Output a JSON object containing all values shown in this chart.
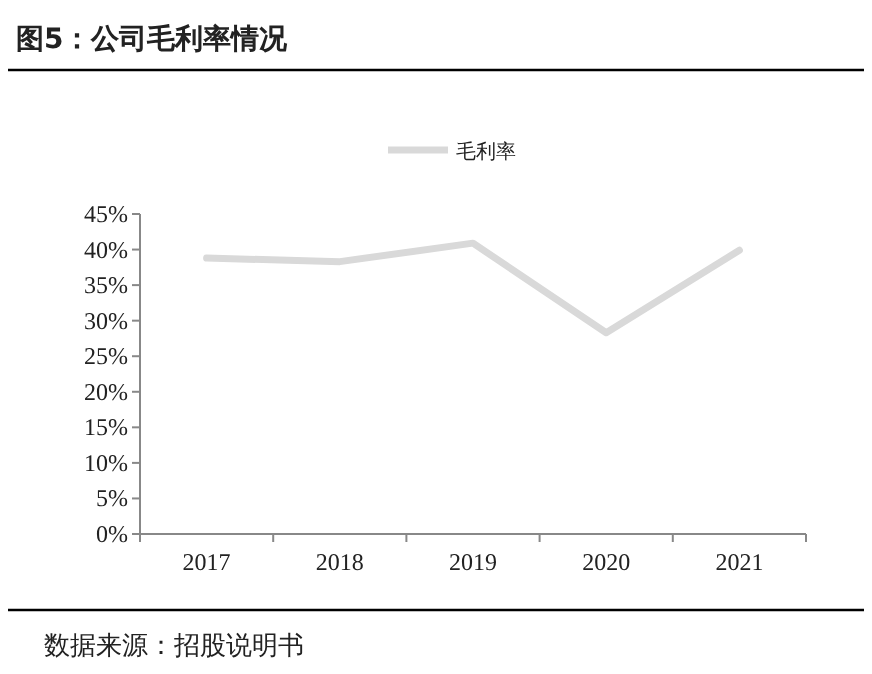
{
  "chart_data": {
    "type": "line",
    "title": "图5：公司毛利率情况",
    "annotations": [
      "数据来源：招股说明书"
    ],
    "categories": [
      "2017",
      "2018",
      "2019",
      "2020",
      "2021"
    ],
    "series": [
      {
        "name": "毛利率",
        "color": "#d9d9d9",
        "values": [
          38.8,
          38.3,
          40.9,
          28.3,
          39.9
        ]
      }
    ],
    "ylim": [
      0,
      45
    ],
    "yticks": [
      {
        "value": 0,
        "label": "0%"
      },
      {
        "value": 5,
        "label": "5%"
      },
      {
        "value": 10,
        "label": "10%"
      },
      {
        "value": 15,
        "label": "15%"
      },
      {
        "value": 20,
        "label": "20%"
      },
      {
        "value": 25,
        "label": "25%"
      },
      {
        "value": 30,
        "label": "30%"
      },
      {
        "value": 35,
        "label": "35%"
      },
      {
        "value": 40,
        "label": "40%"
      },
      {
        "value": 45,
        "label": "45%"
      }
    ],
    "grid": false,
    "legend": "top",
    "marker": "none",
    "line_style": "solid"
  }
}
